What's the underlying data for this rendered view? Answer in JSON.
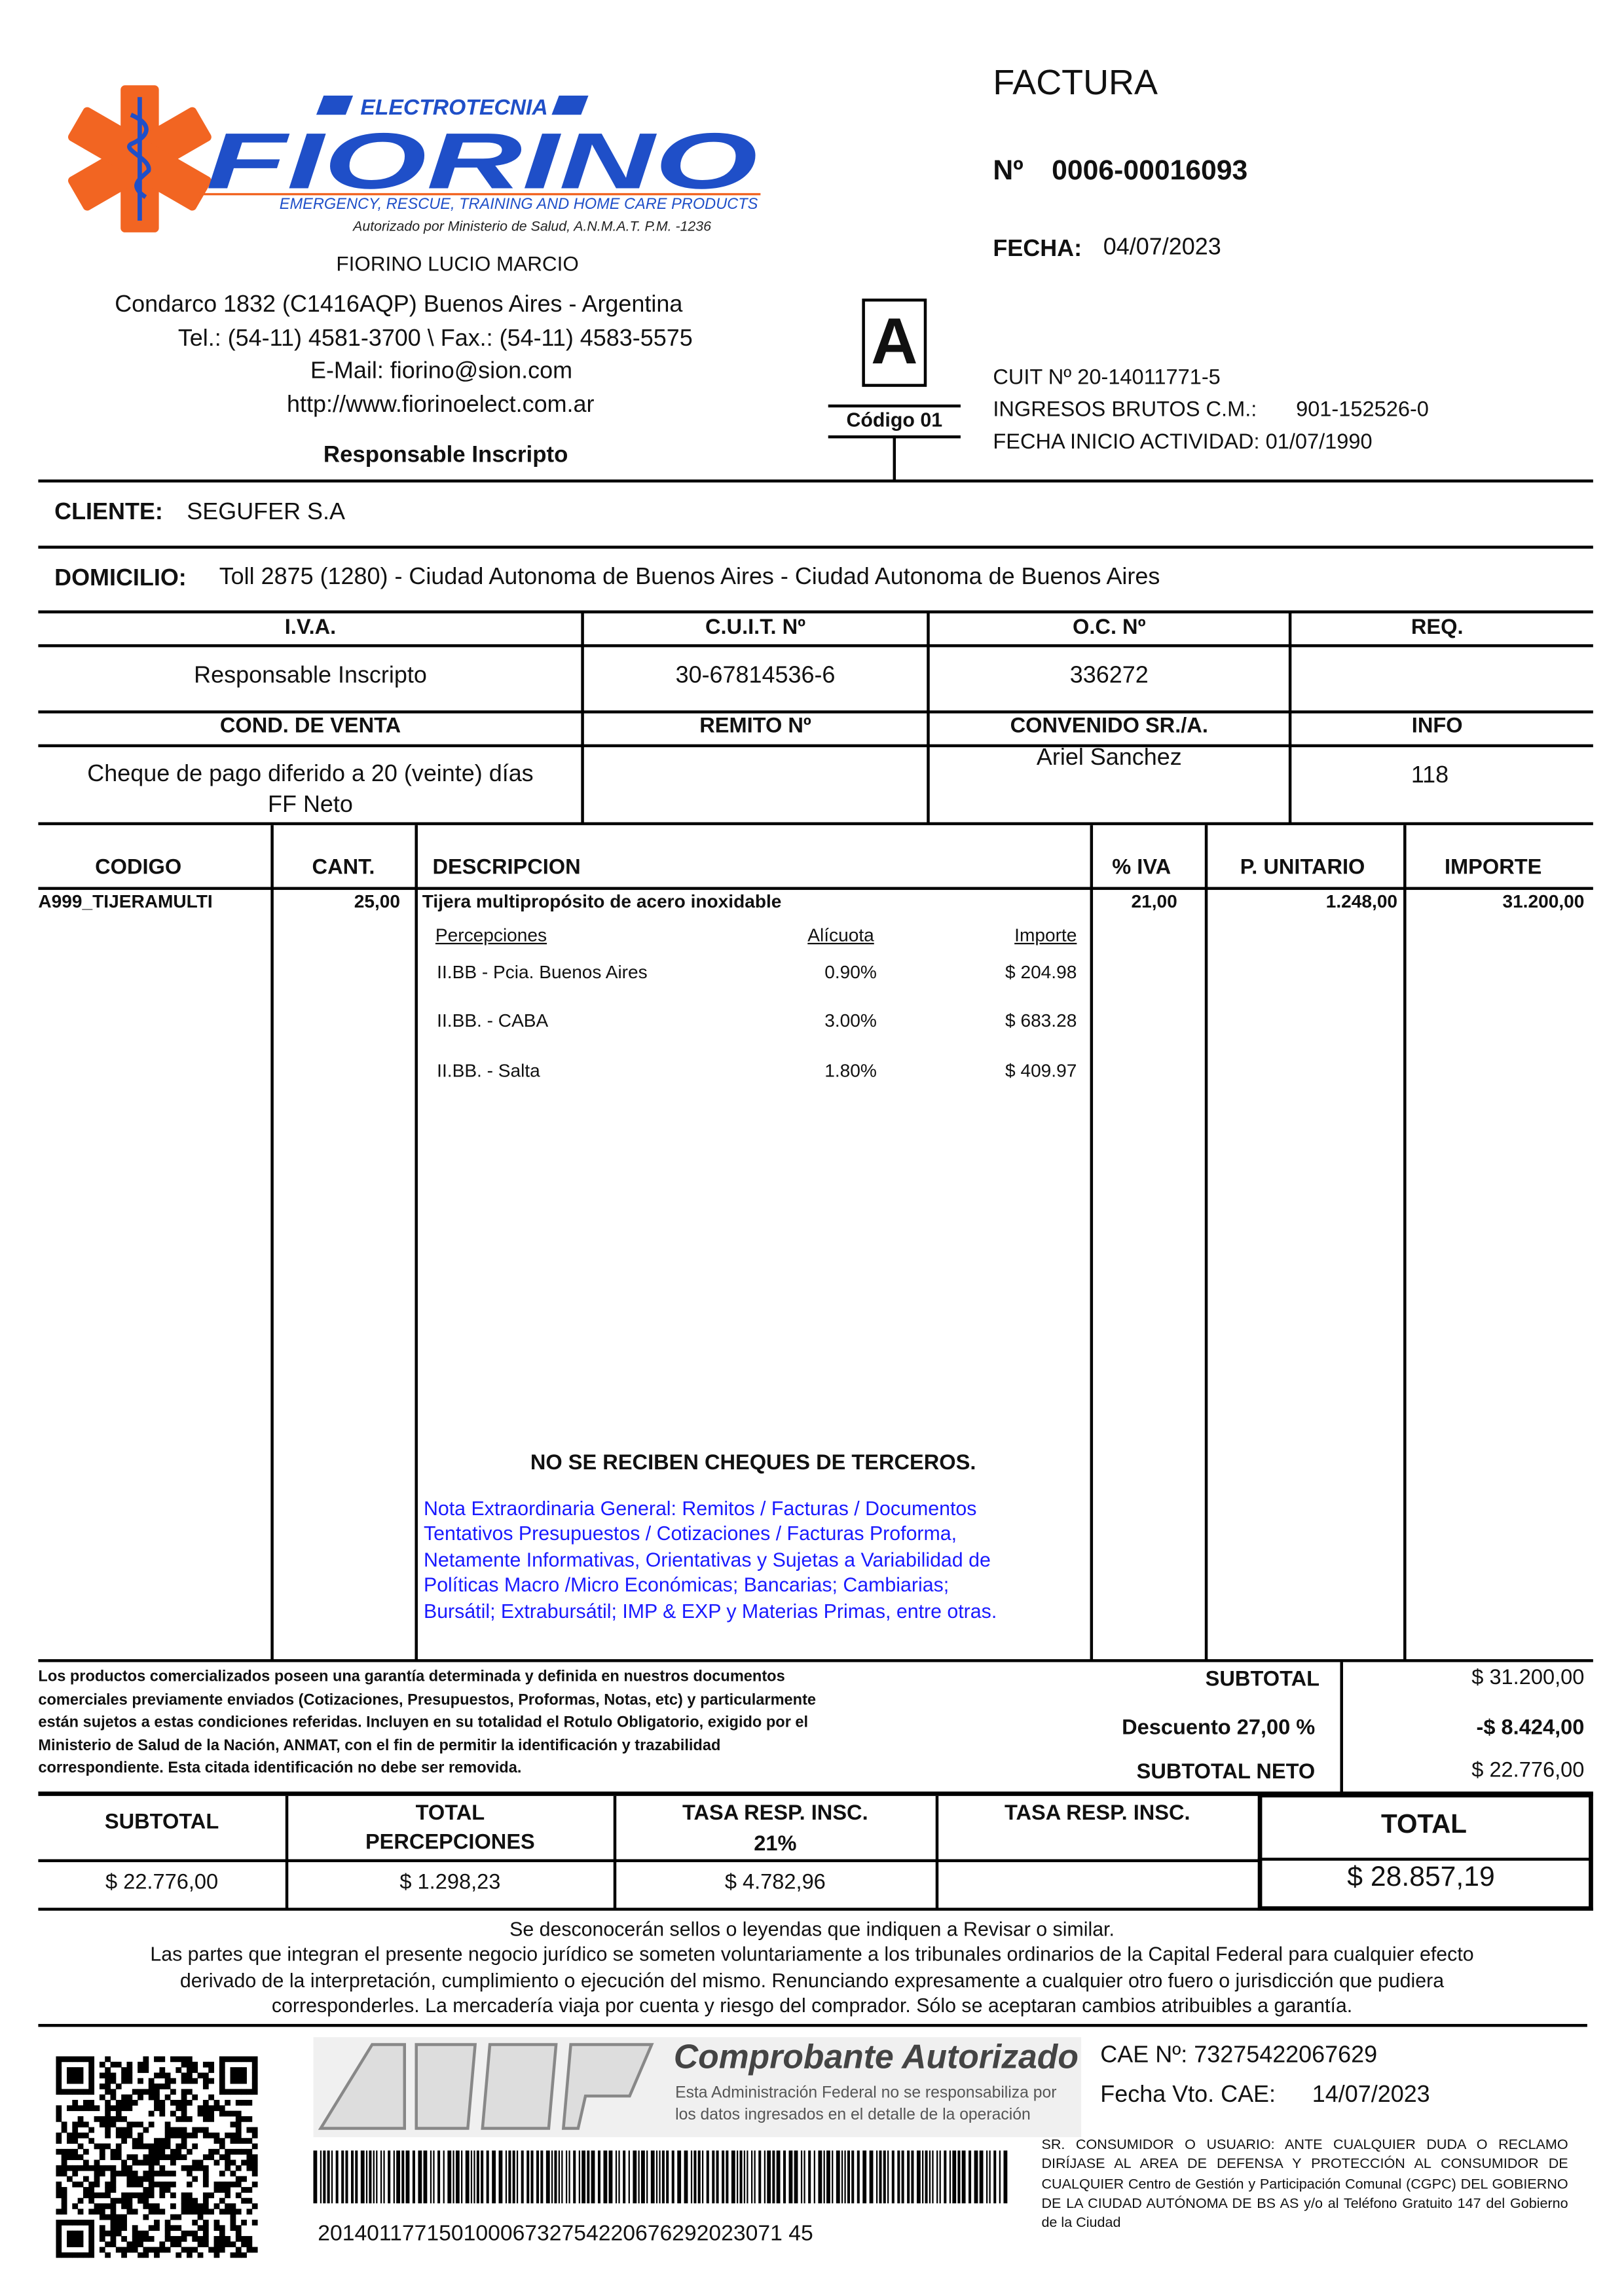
{
  "company": {
    "brand_top": "ELECTROTECNIA",
    "brand_name": "FIORINO",
    "tagline": "EMERGENCY, RESCUE, TRAINING AND HOME CARE PRODUCTS",
    "authorization": "Autorizado por Ministerio de Salud, A.N.M.A.T.   P.M. -1236",
    "owner": "FIORINO LUCIO MARCIO",
    "address": "Condarco 1832 (C1416AQP) Buenos Aires - Argentina",
    "phone": "Tel.: (54-11) 4581-3700 \\ Fax.: (54-11) 4583-5575",
    "email": "E-Mail: fiorino@sion.com",
    "web": "http://www.fiorinoelect.com.ar",
    "tax_condition": "Responsable Inscripto"
  },
  "invoice": {
    "title": "FACTURA",
    "number_label": "Nº",
    "number": "0006-00016093",
    "date_label": "FECHA:",
    "date": "04/07/2023",
    "type_letter": "A",
    "type_code": "Código 01",
    "cuit": "CUIT Nº  20-14011771-5",
    "iibb_label": "INGRESOS BRUTOS C.M.:",
    "iibb": "901-152526-0",
    "start": "FECHA INICIO ACTIVIDAD: 01/07/1990"
  },
  "client": {
    "label": "CLIENTE:",
    "name": "SEGUFER S.A",
    "address_label": "DOMICILIO:",
    "address": "Toll 2875 (1280)  - Ciudad Autonoma de Buenos Aires  - Ciudad Autonoma de Buenos Aires"
  },
  "info_table": {
    "headers1": [
      "I.V.A.",
      "C.U.I.T. Nº",
      "O.C. Nº",
      "REQ."
    ],
    "values1": [
      "Responsable Inscripto",
      "30-67814536-6",
      "336272",
      ""
    ],
    "headers2": [
      "COND. DE VENTA",
      "REMITO Nº",
      "CONVENIDO SR./A.",
      "INFO"
    ],
    "values2": [
      "Cheque de pago diferido a 20 (veinte) días",
      "",
      "Ariel Sanchez",
      "118"
    ],
    "cond_extra": "FF Neto"
  },
  "items": {
    "headers": [
      "CODIGO",
      "CANT.",
      "DESCRIPCION",
      "% IVA",
      "P. UNITARIO",
      "IMPORTE"
    ],
    "rows": [
      {
        "code": "A999_TIJERAMULTI",
        "qty": "25,00",
        "desc": "Tijera multipropósito de acero inoxidable",
        "iva": "21,00",
        "unit": "1.248,00",
        "amount": "31.200,00"
      }
    ],
    "perc_headers": [
      "Percepciones",
      "Alícuota",
      "Importe"
    ],
    "perc": [
      [
        "II.BB - Pcia. Buenos Aires",
        "0.90%",
        "$ 204.98"
      ],
      [
        "II.BB. - CABA",
        "3.00%",
        "$ 683.28"
      ],
      [
        "II.BB. - Salta",
        "1.80%",
        "$ 409.97"
      ]
    ],
    "no_cheques": "NO SE RECIBEN CHEQUES DE TERCEROS.",
    "note": [
      "Nota Extraordinaria General: Remitos / Facturas / Documentos",
      "Tentativos  Presupuestos / Cotizaciones / Facturas Proforma,",
      "Netamente Informativas, Orientativas y Sujetas a Variabilidad de",
      "Políticas Macro /Micro Económicas; Bancarias; Cambiarias;",
      "Bursátil; Extrabursátil; IMP & EXP y Materias Primas, entre otras."
    ]
  },
  "guarantee": [
    "Los productos comercializados poseen una garantía determinada y definida en nuestros documentos",
    "comerciales previamente enviados (Cotizaciones, Presupuestos, Proformas, Notas, etc) y particularmente",
    "están sujetos a estas condiciones referidas. Incluyen en su totalidad el Rotulo Obligatorio, exigido por el",
    "Ministerio de Salud de la Nación, ANMAT, con el fin de permitir la identificación y trazabilidad",
    "correspondiente. Esta citada identificación no debe ser removida."
  ],
  "summary": {
    "subtotal_label": "SUBTOTAL",
    "subtotal": "$  31.200,00",
    "discount_label": "Descuento 27,00 %",
    "discount": "-$ 8.424,00",
    "net_label": "SUBTOTAL NETO",
    "net": "$  22.776,00"
  },
  "totals": {
    "h_subtotal": "SUBTOTAL",
    "h_perc1": "TOTAL",
    "h_perc2": "PERCEPCIONES",
    "h_tasa1": "TASA RESP. INSC.",
    "h_tasa1b": "21%",
    "h_tasa2": "TASA RESP. INSC.",
    "h_total": "TOTAL",
    "subtotal": "$ 22.776,00",
    "perc": "$ 1.298,23",
    "tasa": "$ 4.782,96",
    "tasa2": "",
    "total": "$ 28.857,19"
  },
  "footer": [
    "Se desconocerán sellos o leyendas que indiquen a Revisar o similar.",
    "Las partes que integran el presente negocio jurídico se someten voluntariamente a los tribunales ordinarios de la Capital Federal para cualquier efecto",
    "derivado de la interpretación, cumplimiento o ejecución del mismo. Renunciando expresamente a cualquier otro fuero o jurisdicción que pudiera",
    "corresponderles. La mercadería viaja por cuenta y riesgo del comprador. Sólo se aceptaran cambios atribuibles a garantía."
  ],
  "afip": {
    "logo": "AFIP",
    "title": "Comprobante Autorizado",
    "disclaimer1": "Esta Administración Federal no se responsabiliza por",
    "disclaimer2": "los datos ingresados en el detalle de la operación",
    "cae": "CAE Nº: 73275422067629",
    "cae_due_label": "Fecha Vto. CAE:",
    "cae_due": "14/07/2023",
    "barcode": "20140117715010006732754220676292023071​45",
    "barcode_text": "20140117715010006732754220676292023071 45"
  },
  "consumer_notice": "SR. CONSUMIDOR O USUARIO: ANTE CUALQUIER DUDA O RECLAMO DIRÍJASE AL AREA DE DEFENSA Y PROTECCIÓN AL CONSUMIDOR DE CUALQUIER Centro de Gestión y Participación Comunal (CGPC) DEL GOBIERNO DE LA CIUDAD AUTÓNOMA DE BS AS y/o al Teléfono Gratuito 147 del Gobierno de la Ciudad",
  "colors": {
    "logo_orange": "#f26522",
    "logo_blue": "#1f4fc8",
    "note_blue": "#1a1aff"
  }
}
